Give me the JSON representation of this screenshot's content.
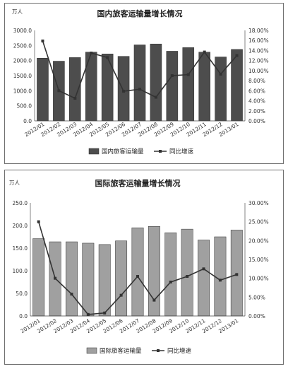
{
  "chart_data": [
    {
      "type": "bar",
      "title": "国内旅客运输量增长情况",
      "unit_label": "万人",
      "categories": [
        "2012/01",
        "2012/02",
        "2012/03",
        "2012/04",
        "2012/05",
        "2012/06",
        "2012/07",
        "2012/08",
        "2012/09",
        "2012/10",
        "2012/11",
        "2012/12",
        "2013/01"
      ],
      "series": [
        {
          "name": "国内旅客运输量",
          "type": "bar",
          "axis": "left",
          "color": "#4d4d4d",
          "values": [
            2080,
            1980,
            2100,
            2280,
            2220,
            2140,
            2520,
            2550,
            2310,
            2430,
            2280,
            2120,
            2370
          ]
        },
        {
          "name": "同比增速",
          "type": "line",
          "axis": "right",
          "color": "#333333",
          "values": [
            15.9,
            6.0,
            4.5,
            13.5,
            12.6,
            5.9,
            6.3,
            4.7,
            9.0,
            9.2,
            13.7,
            9.3,
            13.0
          ]
        }
      ],
      "ylim_left": [
        0,
        3000
      ],
      "yticks_left": [
        "0.0",
        "500.0",
        "1000.0",
        "1500.0",
        "2000.0",
        "2500.0",
        "3000.0"
      ],
      "ylim_right": [
        0,
        18
      ],
      "yticks_right": [
        "0.00%",
        "2.00%",
        "4.00%",
        "6.00%",
        "8.00%",
        "10.00%",
        "12.00%",
        "14.00%",
        "16.00%",
        "18.00%"
      ],
      "legend_position": "bottom"
    },
    {
      "type": "bar",
      "title": "国际旅客运输量增长情况",
      "unit_label": "万人",
      "categories": [
        "2012/01",
        "2012/02",
        "2012/03",
        "2012/04",
        "2012/05",
        "2012/06",
        "2012/07",
        "2012/08",
        "2012/09",
        "2012/10",
        "2012/11",
        "2012/12",
        "2013/01"
      ],
      "series": [
        {
          "name": "国际旅客运输量",
          "type": "bar",
          "axis": "left",
          "color": "#a0a0a0",
          "values": [
            171,
            164,
            164,
            161,
            158,
            166,
            195,
            198,
            184,
            192,
            168,
            175,
            190
          ]
        },
        {
          "name": "同比增速",
          "type": "line",
          "axis": "right",
          "color": "#333333",
          "values": [
            25.0,
            10.0,
            5.8,
            0.4,
            0.8,
            5.5,
            10.5,
            4.2,
            9.0,
            10.5,
            12.5,
            9.5,
            11.0
          ]
        }
      ],
      "ylim_left": [
        0,
        250
      ],
      "yticks_left": [
        "0.0",
        "50.0",
        "100.0",
        "150.0",
        "200.0",
        "250.0"
      ],
      "ylim_right": [
        0,
        30
      ],
      "yticks_right": [
        "0.00%",
        "5.00%",
        "10.00%",
        "15.00%",
        "20.00%",
        "25.00%",
        "30.00%"
      ],
      "legend_position": "bottom"
    }
  ]
}
